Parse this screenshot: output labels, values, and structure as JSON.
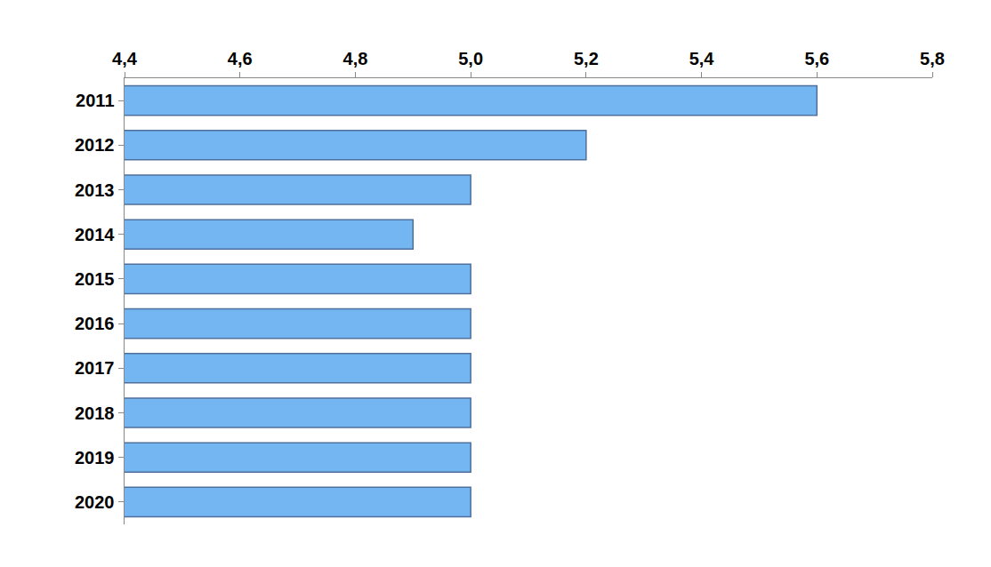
{
  "chart_data": {
    "type": "bar",
    "orientation": "horizontal",
    "categories": [
      "2011",
      "2012",
      "2013",
      "2014",
      "2015",
      "2016",
      "2017",
      "2018",
      "2019",
      "2020"
    ],
    "values": [
      5.6,
      5.2,
      5.0,
      4.9,
      5.0,
      5.0,
      5.0,
      5.0,
      5.0,
      5.0
    ],
    "color": "#74b6f2",
    "xlim": [
      4.4,
      5.8
    ],
    "xticks": [
      {
        "value": 4.4,
        "label": "4,4"
      },
      {
        "value": 4.6,
        "label": "4,6"
      },
      {
        "value": 4.8,
        "label": "4,8"
      },
      {
        "value": 5.0,
        "label": "5,0"
      },
      {
        "value": 5.2,
        "label": "5,2"
      },
      {
        "value": 5.4,
        "label": "5,4"
      },
      {
        "value": 5.6,
        "label": "5,6"
      },
      {
        "value": 5.8,
        "label": "5,8"
      }
    ],
    "grid": false
  }
}
